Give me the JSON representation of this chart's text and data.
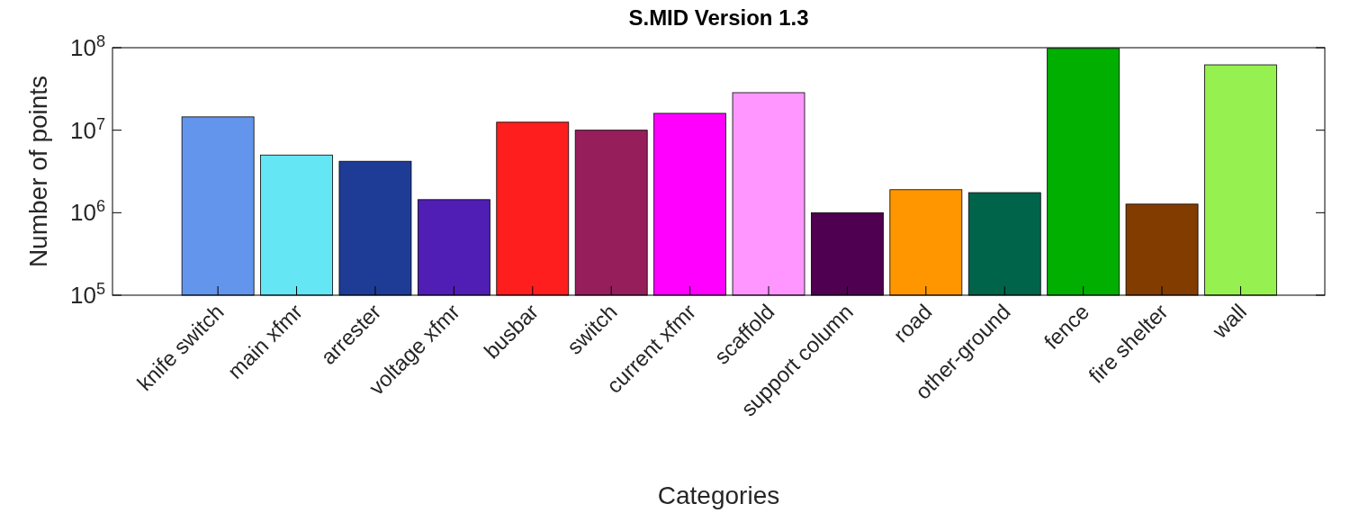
{
  "chart_data": {
    "type": "bar",
    "title": "S.MID Version 1.3",
    "xlabel": "Categories",
    "ylabel": "Number of points",
    "categories": [
      "knife switch",
      "main xfmr",
      "arrester",
      "voltage xfmr",
      "busbar",
      "switch",
      "current xfmr",
      "scaffold",
      "support column",
      "road",
      "other-ground",
      "fence",
      "fire shelter",
      "wall"
    ],
    "values": [
      14500000,
      5000000,
      4200000,
      1440000,
      12500000,
      10000000,
      16000000,
      28500000,
      1000000,
      1900000,
      1750000,
      98000000,
      1270000,
      62000000
    ],
    "colors": [
      "#6495ed",
      "#64e6f5",
      "#1e3c96",
      "#501eb4",
      "#ff1e1e",
      "#961e5a",
      "#ff00ff",
      "#ff96ff",
      "#500050",
      "#ff9600",
      "#00644b",
      "#00af00",
      "#823c00",
      "#96f050"
    ],
    "log": true,
    "ylim": [
      100000,
      100000000
    ],
    "yticks": [
      {
        "value": 100000,
        "label": "10$^{5}$"
      },
      {
        "value": 1000000,
        "label": "10$^{6}$"
      },
      {
        "value": 10000000,
        "label": "10$^{7}$"
      },
      {
        "value": 100000000,
        "label": "10$^{8}$"
      }
    ],
    "grid": false
  }
}
